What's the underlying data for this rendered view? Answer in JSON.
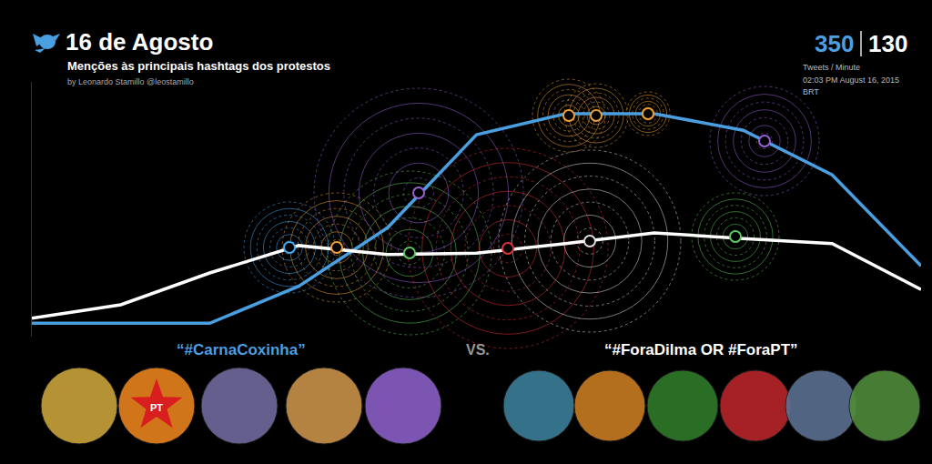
{
  "chart_data": {
    "type": "line",
    "title": "16 de Agosto",
    "subtitle": "Menções às principais hashtags dos protestos",
    "byline": "by Leonardo Stamillo @leostamillo",
    "categories": [
      null,
      null,
      null,
      null,
      null,
      null,
      null,
      null,
      null,
      null,
      null
    ],
    "series": [
      {
        "name": "“#CarnaCoxinha”",
        "color": "#4a9fe0",
        "values": [
          21,
          21,
          21,
          79,
          171,
          317,
          350,
          350,
          324,
          254,
          111
        ]
      },
      {
        "name": "“#ForaDilma OR #ForaPT”",
        "color": "#ffffff",
        "values": [
          29,
          50,
          100,
          143,
          129,
          131,
          146,
          163,
          154,
          146,
          74
        ]
      }
    ],
    "ylim": [
      0,
      400
    ],
    "tick_labels": false,
    "grid": false,
    "readout": {
      "values": [
        350,
        130
      ],
      "unit": "Tweets / Minute",
      "time": "02:03 PM August 16, 2015",
      "zone": "BRT"
    },
    "versus": "VS.",
    "badge": "PT"
  }
}
